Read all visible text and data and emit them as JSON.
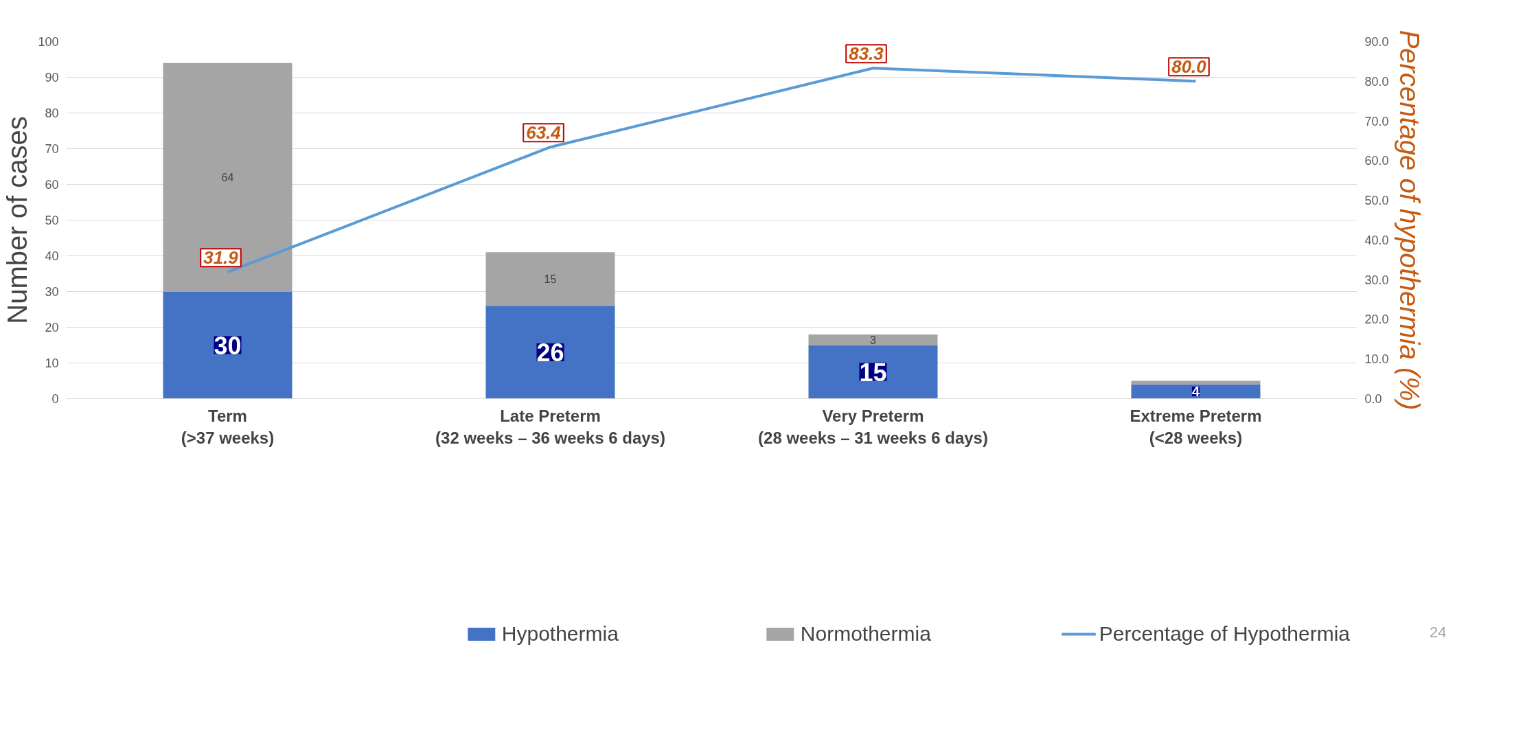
{
  "chart_data": {
    "type": "bar",
    "stacked": true,
    "categories": [
      "Term\n(>37 weeks)",
      "Late Preterm\n(32 weeks – 36 weeks 6 days)",
      "Very Preterm\n(28 weeks – 31 weeks 6 days)",
      "Extreme Preterm\n(<28 weeks)"
    ],
    "ylabel": "Number of cases",
    "y2label": "Percentage of hypothermia (%)",
    "ylim": [
      0,
      100
    ],
    "yticks": [
      0,
      10,
      20,
      30,
      40,
      50,
      60,
      70,
      80,
      90,
      100
    ],
    "y2lim": [
      0,
      90
    ],
    "y2ticks": [
      {
        "value": 0,
        "label": "0.0"
      },
      {
        "value": 10,
        "label": "10.0"
      },
      {
        "value": 20,
        "label": "20.0"
      },
      {
        "value": 30,
        "label": "30.0"
      },
      {
        "value": 40,
        "label": "40.0"
      },
      {
        "value": 50,
        "label": "50.0"
      },
      {
        "value": 60,
        "label": "60.0"
      },
      {
        "value": 70,
        "label": "70.0"
      },
      {
        "value": 80,
        "label": "80.0"
      },
      {
        "value": 90,
        "label": "90.0"
      }
    ],
    "grid": "y",
    "legend": "bottom",
    "series": [
      {
        "name": "Hypothermia",
        "color": "#4472c4",
        "values": [
          30,
          26,
          15,
          4
        ],
        "value_labels": [
          "30",
          "26",
          "15",
          "4"
        ]
      },
      {
        "name": "Normothermia",
        "color": "#a5a5a5",
        "values": [
          64,
          15,
          3,
          1
        ],
        "value_labels": [
          "64",
          "15",
          "3",
          null
        ]
      },
      {
        "name": "Percentage of Hypothermia",
        "type": "line",
        "axis": "y2",
        "color": "#5b9bd5",
        "values": [
          31.9,
          63.4,
          83.3,
          80.0
        ],
        "value_labels": [
          "31.9",
          "63.4",
          "83.3",
          "80.0"
        ]
      }
    ],
    "annotations": [
      "24"
    ]
  }
}
